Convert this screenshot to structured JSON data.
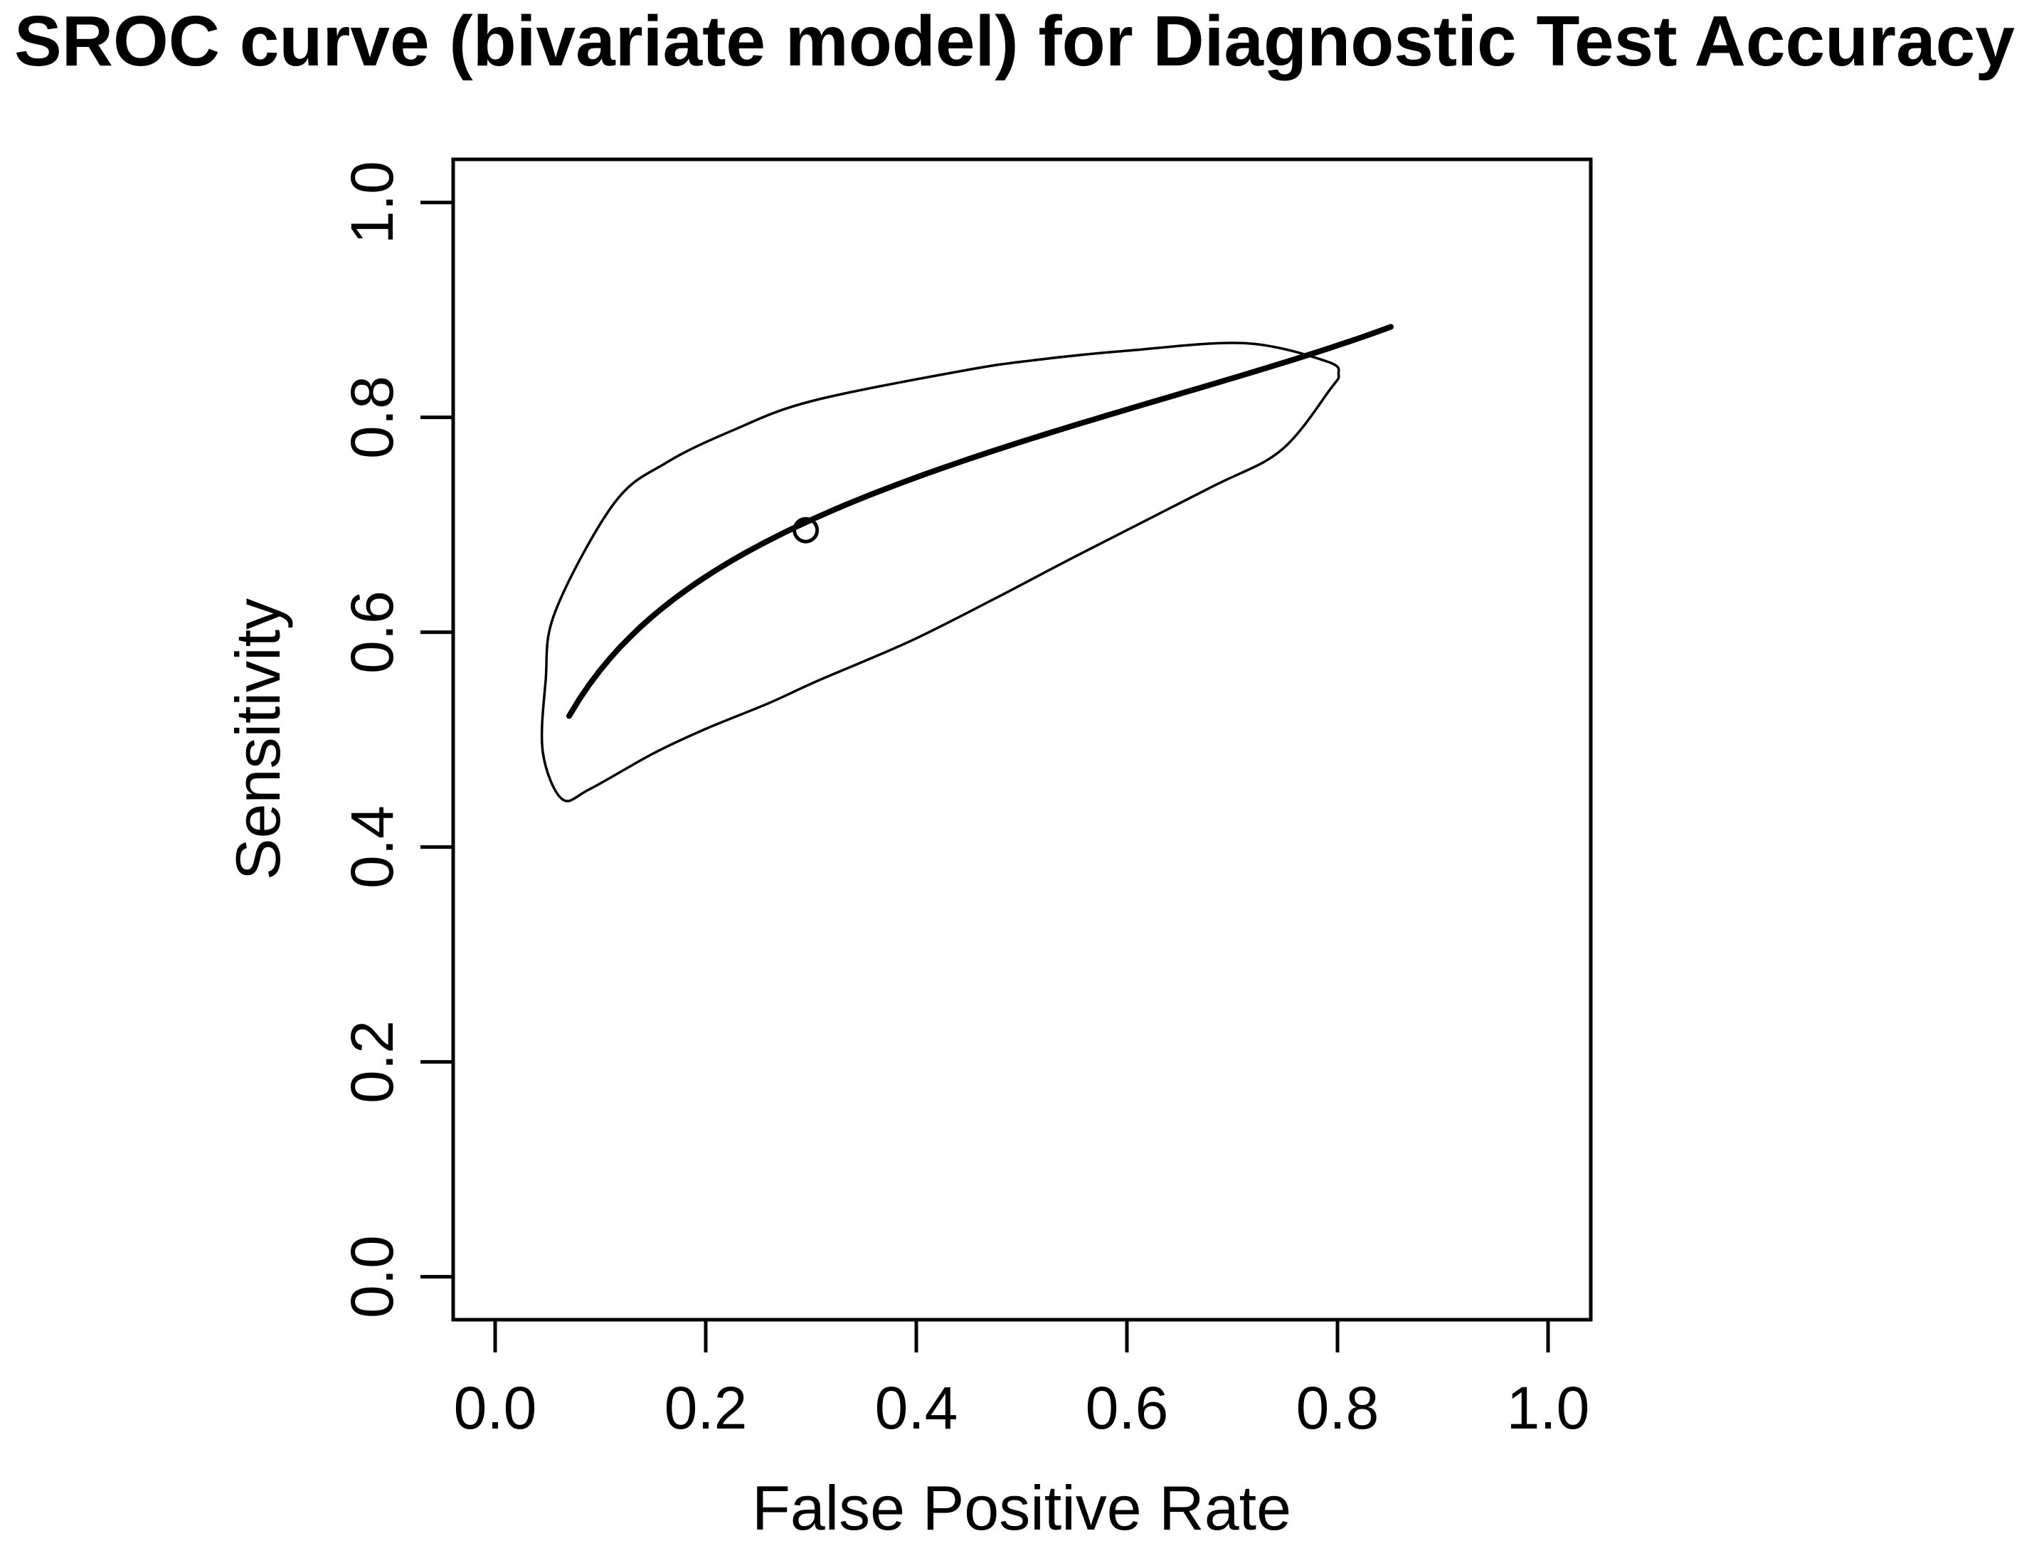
{
  "title": {
    "text": "SROC curve (bivariate model) for Diagnostic Test Accuracy"
  },
  "colors": {
    "ink": "#000000",
    "background": "#ffffff"
  },
  "chart_data": {
    "type": "line",
    "title": "SROC curve (bivariate model) for Diagnostic Test Accuracy",
    "xlabel": "False Positive Rate",
    "ylabel": "Sensitivity",
    "xlim": [
      0,
      1
    ],
    "ylim": [
      0,
      1
    ],
    "axis_extension": 0.04,
    "grid": "off",
    "legend": "none",
    "x_ticks": {
      "labels": [
        "0.0",
        "0.2",
        "0.4",
        "0.6",
        "0.8",
        "1.0"
      ],
      "values": [
        0,
        0.2,
        0.4,
        0.6,
        0.8,
        1.0
      ]
    },
    "y_ticks": {
      "labels": [
        "0.0",
        "0.2",
        "0.4",
        "0.6",
        "0.8",
        "1.0"
      ],
      "values": [
        0,
        0.2,
        0.4,
        0.6,
        0.8,
        1.0
      ]
    },
    "series": [
      {
        "name": "sroc-curve",
        "kind": "sroc",
        "description": "summary ROC curve: logit(sensitivity) = a + b * logit(FPR)",
        "a": 1.25,
        "b": 0.45,
        "fpr_range": [
          0.0703,
          0.8507
        ],
        "endpoints": [
          [
            0.07,
            0.52
          ],
          [
            0.85,
            0.88
          ]
        ],
        "stroke": "#000000",
        "stroke_width": 8
      },
      {
        "name": "confidence-region",
        "kind": "closed-loop",
        "description": "confidence region around summary estimate",
        "stroke": "#000000",
        "stroke_width": 3.5,
        "points": [
          [
            0.057,
            0.619
          ],
          [
            0.113,
            0.72
          ],
          [
            0.163,
            0.758
          ],
          [
            0.226,
            0.788
          ],
          [
            0.3,
            0.815
          ],
          [
            0.442,
            0.843
          ],
          [
            0.51,
            0.853
          ],
          [
            0.6,
            0.862
          ],
          [
            0.712,
            0.869
          ],
          [
            0.79,
            0.852
          ],
          [
            0.801,
            0.84
          ],
          [
            0.793,
            0.826
          ],
          [
            0.746,
            0.769
          ],
          [
            0.678,
            0.734
          ],
          [
            0.55,
            0.67
          ],
          [
            0.476,
            0.632
          ],
          [
            0.395,
            0.592
          ],
          [
            0.307,
            0.555
          ],
          [
            0.26,
            0.534
          ],
          [
            0.2,
            0.51
          ],
          [
            0.15,
            0.487
          ],
          [
            0.09,
            0.454
          ],
          [
            0.0635,
            0.4447
          ],
          [
            0.0453,
            0.4884
          ],
          [
            0.048,
            0.555
          ]
        ]
      }
    ],
    "summary_point": {
      "fpr": 0.295,
      "sensitivity": 0.695,
      "marker": "open-circle",
      "radius": 16,
      "stroke_width": 5
    }
  }
}
